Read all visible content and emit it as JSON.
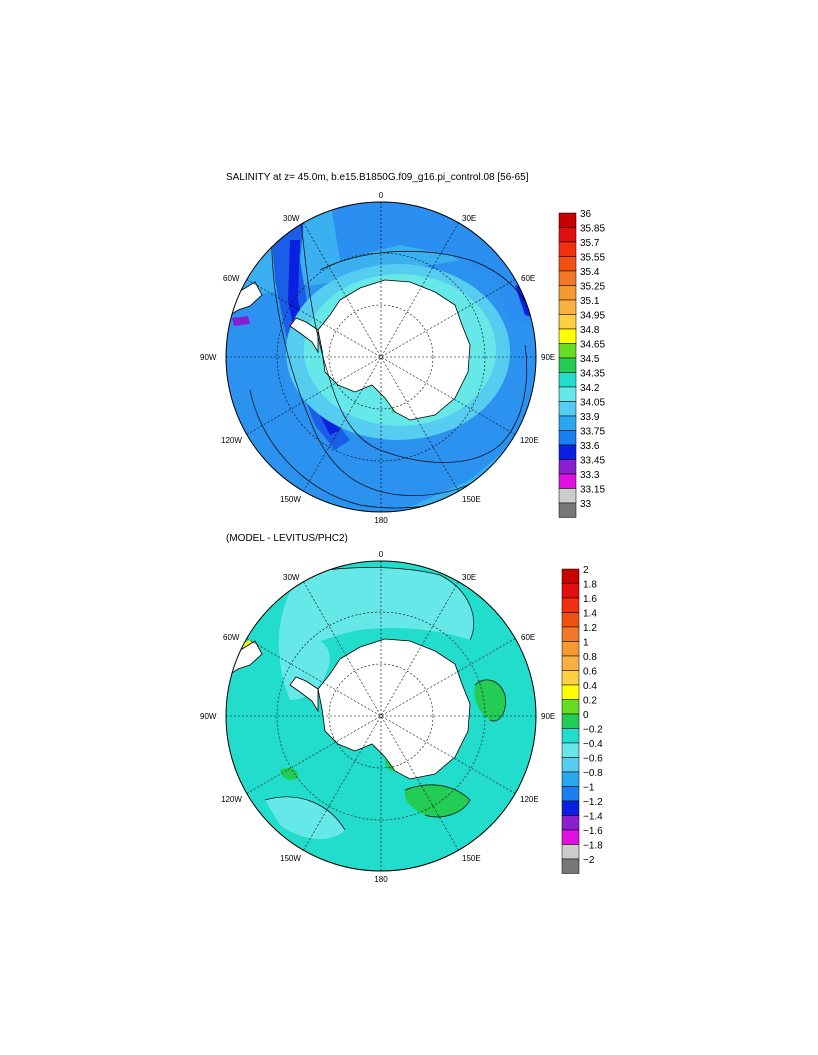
{
  "panels": [
    {
      "title": "SALINITY at z=  45.0m, b.e15.B1850G.f09_g16.pi_control.08 [56-65]",
      "lon_labels": {
        "n": "0",
        "ne30": "30E",
        "ne60": "60E",
        "e": "90E",
        "se120": "120E",
        "se150": "150E",
        "s": "180",
        "sw150": "150W",
        "sw120": "120W",
        "w": "90W",
        "nw60": "60W",
        "nw30": "30W"
      },
      "colorbar": {
        "labels": [
          "36",
          "35.85",
          "35.7",
          "35.55",
          "35.4",
          "35.25",
          "35.1",
          "34.95",
          "34.8",
          "34.65",
          "34.5",
          "34.35",
          "34.2",
          "34.05",
          "33.9",
          "33.75",
          "33.6",
          "33.45",
          "33.3",
          "33.15",
          "33"
        ],
        "colors": [
          "#c80000",
          "#e01010",
          "#f03010",
          "#f05010",
          "#f07828",
          "#f59a30",
          "#f8b040",
          "#fcd040",
          "#ffff00",
          "#66dd22",
          "#22cc55",
          "#22ddcc",
          "#66e8e8",
          "#55ccf0",
          "#2aa8ee",
          "#1a7ff0",
          "#0a20e0",
          "#8820d0",
          "#e010e0",
          "#cccccc",
          "#777777"
        ]
      }
    },
    {
      "title": "(MODEL - LEVITUS/PHC2)",
      "lon_labels": {
        "n": "0",
        "ne30": "30E",
        "ne60": "60E",
        "e": "90E",
        "se120": "120E",
        "se150": "150E",
        "s": "180",
        "sw150": "150W",
        "sw120": "120W",
        "w": "90W",
        "nw60": "60W",
        "nw30": "30W"
      },
      "colorbar": {
        "labels": [
          "2",
          "1.8",
          "1.6",
          "1.4",
          "1.2",
          "1",
          "0.8",
          "0.6",
          "0.4",
          "0.2",
          "0",
          "−0.2",
          "−0.4",
          "−0.6",
          "−0.8",
          "−1",
          "−1.2",
          "−1.4",
          "−1.6",
          "−1.8",
          "−2"
        ],
        "colors": [
          "#c80000",
          "#e01010",
          "#f03010",
          "#f05010",
          "#f07828",
          "#f59a30",
          "#f8b040",
          "#fcd040",
          "#ffff00",
          "#66dd22",
          "#22cc55",
          "#22ddcc",
          "#66e8e8",
          "#55ccf0",
          "#2aa8ee",
          "#1a7ff0",
          "#0a20e0",
          "#8820d0",
          "#e010e0",
          "#cccccc",
          "#777777"
        ]
      }
    }
  ],
  "map_colors": {
    "top_background": "#2a8ff0",
    "top_light": "#3ab0f0",
    "top_dark": "#1a6ee8",
    "top_deep": "#0a20e0",
    "top_cyan": "#66e8e8",
    "bottom_background": "#22ddcc",
    "bottom_light": "#66e8e8",
    "bottom_green": "#22cc55",
    "land": "#ffffff"
  }
}
